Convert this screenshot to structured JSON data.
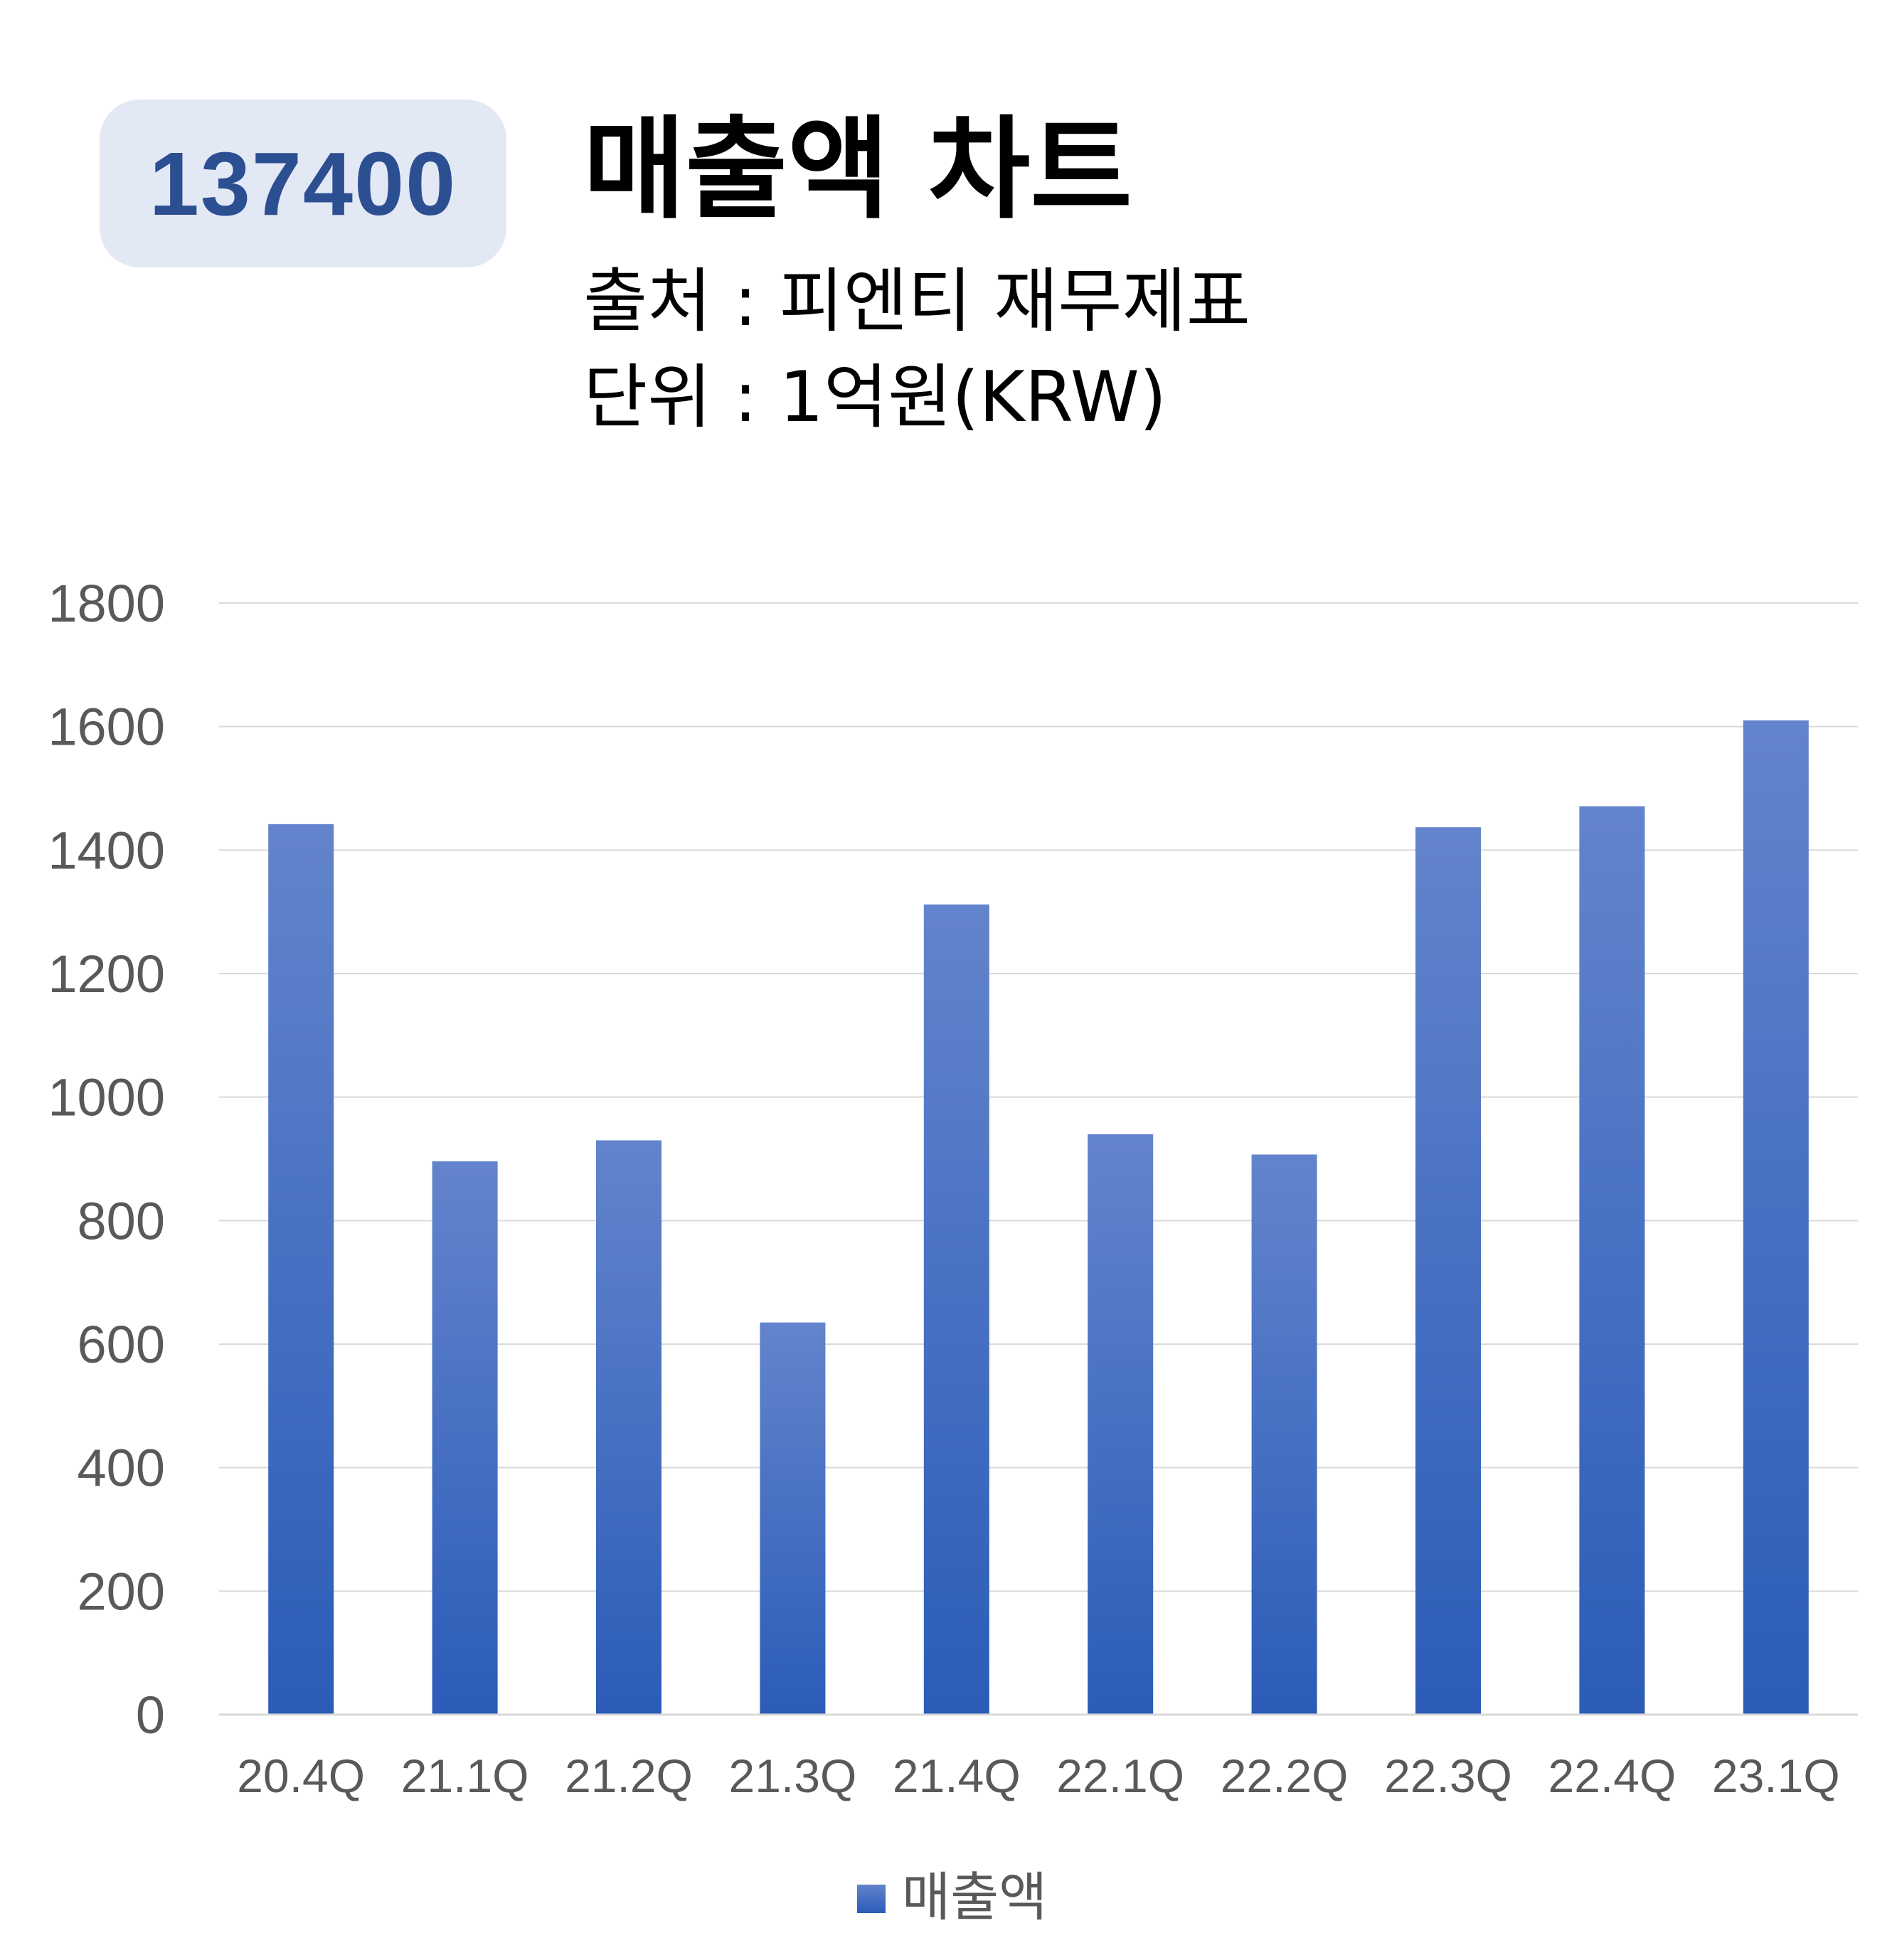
{
  "header": {
    "stock_code": "137400",
    "title": "매출액 차트",
    "source_line": "출처 : 피엔티 재무제표",
    "unit_line": "단위 : 1억원(KRW)"
  },
  "colors": {
    "bar_top": "#6384cc",
    "bar_bottom": "#2b5cb8",
    "badge_bg": "#e3e8f5",
    "badge_text": "#2c4f92",
    "grid": "#d9d9d9"
  },
  "chart_data": {
    "type": "bar",
    "title": "매출액 차트",
    "xlabel": "",
    "ylabel": "",
    "categories": [
      "20.4Q",
      "21.1Q",
      "21.2Q",
      "21.3Q",
      "21.4Q",
      "22.1Q",
      "22.2Q",
      "22.3Q",
      "22.4Q",
      "23.1Q"
    ],
    "series": [
      {
        "name": "매출액",
        "values": [
          1442,
          896,
          930,
          635,
          1312,
          940,
          907,
          1437,
          1471,
          1610
        ]
      }
    ],
    "ylim": [
      0,
      1800
    ],
    "yticks": [
      "0",
      "200",
      "400",
      "600",
      "800",
      "1000",
      "1200",
      "1400",
      "1600",
      "1800"
    ],
    "grid": true,
    "legend": "bottom"
  }
}
